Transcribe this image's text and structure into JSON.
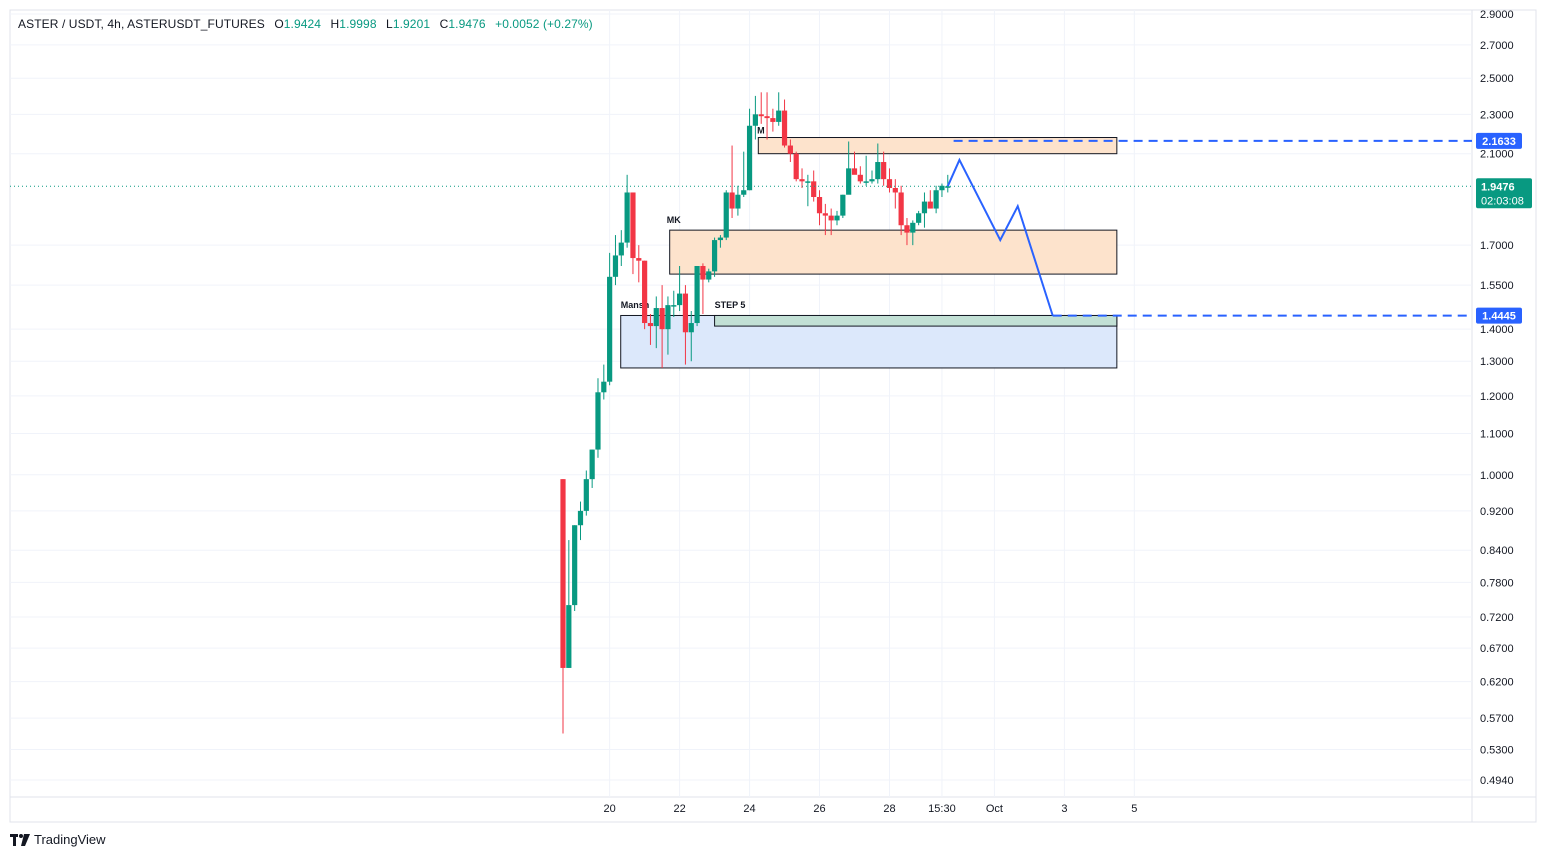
{
  "header": {
    "symbol": "ASTER / USDT, 4h, ASTERUSDT_FUTURES",
    "open_label": "O",
    "open": "1.9424",
    "high_label": "H",
    "high": "1.9998",
    "low_label": "L",
    "low": "1.9201",
    "close_label": "C",
    "close": "1.9476",
    "change": "+0.0052 (+0.27%)"
  },
  "branding": {
    "name": "TradingView",
    "logo_icon": "tradingview-logo-icon"
  },
  "colors": {
    "up": "#089981",
    "down": "#f23645",
    "accent": "#2962ff"
  },
  "chart_data": {
    "type": "candlestick",
    "timeframe": "4h",
    "y_scale": "log",
    "ylim": [
      0.47,
      2.9
    ],
    "y_ticks": [
      "2.9000",
      "2.7000",
      "2.5000",
      "2.3000",
      "2.1000",
      "1.7000",
      "1.5500",
      "1.4000",
      "1.3000",
      "1.2000",
      "1.1000",
      "1.0000",
      "0.9200",
      "0.8400",
      "0.7800",
      "0.7200",
      "0.6700",
      "0.6200",
      "0.5700",
      "0.5300",
      "0.4940"
    ],
    "x_ticks": [
      {
        "label": "20",
        "t": 8
      },
      {
        "label": "22",
        "t": 20
      },
      {
        "label": "24",
        "t": 32
      },
      {
        "label": "26",
        "t": 44
      },
      {
        "label": "28",
        "t": 56
      },
      {
        "label": "15:30",
        "t": 65
      },
      {
        "label": "Oct",
        "t": 74
      },
      {
        "label": "3",
        "t": 86
      },
      {
        "label": "5",
        "t": 98
      }
    ],
    "candles": [
      [
        0.99,
        0.99,
        0.55,
        0.64
      ],
      [
        0.64,
        0.86,
        0.64,
        0.74
      ],
      [
        0.74,
        0.89,
        0.73,
        0.89
      ],
      [
        0.89,
        0.94,
        0.86,
        0.92
      ],
      [
        0.92,
        1.01,
        0.91,
        0.99
      ],
      [
        0.99,
        1.06,
        0.97,
        1.06
      ],
      [
        1.06,
        1.25,
        1.04,
        1.21
      ],
      [
        1.21,
        1.29,
        1.19,
        1.24
      ],
      [
        1.24,
        1.67,
        1.23,
        1.58
      ],
      [
        1.58,
        1.74,
        1.55,
        1.66
      ],
      [
        1.66,
        1.76,
        1.62,
        1.71
      ],
      [
        1.71,
        2.0,
        1.69,
        1.92
      ],
      [
        1.92,
        1.92,
        1.59,
        1.65
      ],
      [
        1.65,
        1.7,
        1.56,
        1.64
      ],
      [
        1.64,
        1.64,
        1.4,
        1.42
      ],
      [
        1.42,
        1.45,
        1.35,
        1.41
      ],
      [
        1.41,
        1.51,
        1.34,
        1.47
      ],
      [
        1.47,
        1.55,
        1.28,
        1.4
      ],
      [
        1.4,
        1.51,
        1.32,
        1.48
      ],
      [
        1.48,
        1.53,
        1.44,
        1.48
      ],
      [
        1.48,
        1.62,
        1.46,
        1.52
      ],
      [
        1.52,
        1.55,
        1.29,
        1.39
      ],
      [
        1.39,
        1.46,
        1.3,
        1.42
      ],
      [
        1.42,
        1.62,
        1.41,
        1.62
      ],
      [
        1.62,
        1.63,
        1.45,
        1.57
      ],
      [
        1.57,
        1.61,
        1.56,
        1.6
      ],
      [
        1.6,
        1.73,
        1.58,
        1.72
      ],
      [
        1.72,
        1.74,
        1.69,
        1.73
      ],
      [
        1.73,
        1.93,
        1.72,
        1.92
      ],
      [
        1.92,
        2.14,
        1.81,
        1.85
      ],
      [
        1.85,
        1.95,
        1.82,
        1.91
      ],
      [
        1.91,
        2.11,
        1.9,
        1.93
      ],
      [
        1.93,
        2.33,
        1.93,
        2.24
      ],
      [
        2.24,
        2.4,
        2.17,
        2.3
      ],
      [
        2.3,
        2.42,
        2.25,
        2.29
      ],
      [
        2.29,
        2.42,
        2.17,
        2.28
      ],
      [
        2.28,
        2.33,
        2.21,
        2.26
      ],
      [
        2.26,
        2.42,
        2.24,
        2.32
      ],
      [
        2.32,
        2.38,
        2.13,
        2.14
      ],
      [
        2.14,
        2.17,
        2.06,
        2.1
      ],
      [
        2.1,
        2.11,
        1.97,
        1.98
      ],
      [
        1.98,
        2.03,
        1.94,
        1.97
      ],
      [
        1.97,
        2.0,
        1.86,
        1.97
      ],
      [
        1.97,
        2.02,
        1.88,
        1.9
      ],
      [
        1.9,
        1.93,
        1.78,
        1.83
      ],
      [
        1.83,
        1.87,
        1.74,
        1.82
      ],
      [
        1.82,
        1.85,
        1.74,
        1.8
      ],
      [
        1.8,
        1.84,
        1.78,
        1.82
      ],
      [
        1.82,
        1.91,
        1.81,
        1.91
      ],
      [
        1.91,
        2.16,
        1.92,
        2.03
      ],
      [
        2.03,
        2.11,
        2.01,
        2.0
      ],
      [
        2.0,
        2.04,
        1.96,
        1.97
      ],
      [
        1.97,
        2.09,
        1.95,
        1.97
      ],
      [
        1.97,
        2.02,
        1.96,
        1.98
      ],
      [
        1.98,
        2.15,
        1.96,
        2.06
      ],
      [
        2.06,
        2.11,
        1.95,
        1.98
      ],
      [
        1.98,
        2.03,
        1.92,
        1.94
      ],
      [
        1.94,
        1.98,
        1.85,
        1.92
      ],
      [
        1.92,
        1.95,
        1.74,
        1.78
      ],
      [
        1.78,
        1.81,
        1.7,
        1.75
      ],
      [
        1.75,
        1.8,
        1.7,
        1.79
      ],
      [
        1.79,
        1.84,
        1.78,
        1.83
      ],
      [
        1.83,
        1.92,
        1.77,
        1.88
      ],
      [
        1.88,
        1.93,
        1.85,
        1.85
      ],
      [
        1.85,
        1.95,
        1.83,
        1.93
      ],
      [
        1.93,
        1.96,
        1.9,
        1.95
      ],
      [
        1.9424,
        1.9998,
        1.9201,
        1.9476
      ]
    ],
    "zones": [
      {
        "t1": 33.5,
        "t2": 95,
        "low": 2.1,
        "high": 2.18,
        "color": "#fde3cc"
      },
      {
        "t1": 18.3,
        "t2": 95,
        "low": 1.59,
        "high": 1.76,
        "color": "#fde3cc"
      },
      {
        "t1": 9.9,
        "t2": 95,
        "low": 1.28,
        "high": 1.445,
        "color": "#dce8fb"
      },
      {
        "t1": 26,
        "t2": 95,
        "low": 1.41,
        "high": 1.445,
        "color": "#c2e0d5"
      }
    ],
    "annotations": [
      {
        "text": "M",
        "t": 33.3,
        "price": 2.2
      },
      {
        "text": "MK",
        "t": 17.8,
        "price": 1.79
      },
      {
        "text": "Mansh",
        "t": 9.9,
        "price": 1.47
      },
      {
        "text": "STEP 5",
        "t": 26,
        "price": 1.47
      }
    ],
    "projection_path": [
      [
        66,
        1.948
      ],
      [
        68,
        2.07
      ],
      [
        75,
        1.72
      ],
      [
        78,
        1.86
      ],
      [
        84,
        1.4445
      ]
    ],
    "levels": [
      {
        "price": 2.1633,
        "label": "2.1633",
        "t1": 67,
        "color": "#2962ff"
      },
      {
        "price": 1.4445,
        "label": "1.4445",
        "t1": 84,
        "color": "#2962ff"
      }
    ],
    "last_price": {
      "value": 1.9476,
      "label": "1.9476",
      "countdown": "02:03:08"
    }
  }
}
